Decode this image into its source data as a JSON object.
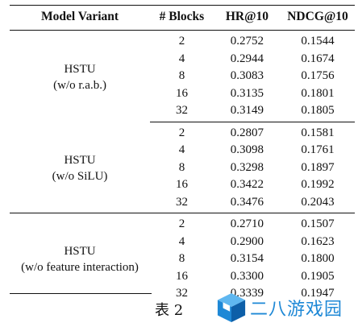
{
  "table": {
    "headers": [
      "Model Variant",
      "# Blocks",
      "HR@10",
      "NDCG@10"
    ],
    "groups": [
      {
        "variant_line1": "HSTU",
        "variant_line2": "(w/o r.a.b.)",
        "rows": [
          {
            "blocks": "2",
            "hr": "0.2752",
            "ndcg": "0.1544"
          },
          {
            "blocks": "4",
            "hr": "0.2944",
            "ndcg": "0.1674"
          },
          {
            "blocks": "8",
            "hr": "0.3083",
            "ndcg": "0.1756"
          },
          {
            "blocks": "16",
            "hr": "0.3135",
            "ndcg": "0.1801"
          },
          {
            "blocks": "32",
            "hr": "0.3149",
            "ndcg": "0.1805"
          }
        ]
      },
      {
        "variant_line1": "HSTU",
        "variant_line2": "(w/o SiLU)",
        "rows": [
          {
            "blocks": "2",
            "hr": "0.2807",
            "ndcg": "0.1581"
          },
          {
            "blocks": "4",
            "hr": "0.3098",
            "ndcg": "0.1761"
          },
          {
            "blocks": "8",
            "hr": "0.3298",
            "ndcg": "0.1897"
          },
          {
            "blocks": "16",
            "hr": "0.3422",
            "ndcg": "0.1992"
          },
          {
            "blocks": "32",
            "hr": "0.3476",
            "ndcg": "0.2043"
          }
        ]
      },
      {
        "variant_line1": "HSTU",
        "variant_line2": "(w/o feature interaction)",
        "rows": [
          {
            "blocks": "2",
            "hr": "0.2710",
            "ndcg": "0.1507"
          },
          {
            "blocks": "4",
            "hr": "0.2900",
            "ndcg": "0.1623"
          },
          {
            "blocks": "8",
            "hr": "0.3154",
            "ndcg": "0.1800"
          },
          {
            "blocks": "16",
            "hr": "0.3300",
            "ndcg": "0.1905"
          },
          {
            "blocks": "32",
            "hr": "0.3339",
            "ndcg": "0.1947"
          }
        ]
      }
    ]
  },
  "caption": "表 2",
  "watermark": {
    "text": "二八游戏园",
    "icon": "cube-logo-icon",
    "color": "#1e88d6"
  }
}
